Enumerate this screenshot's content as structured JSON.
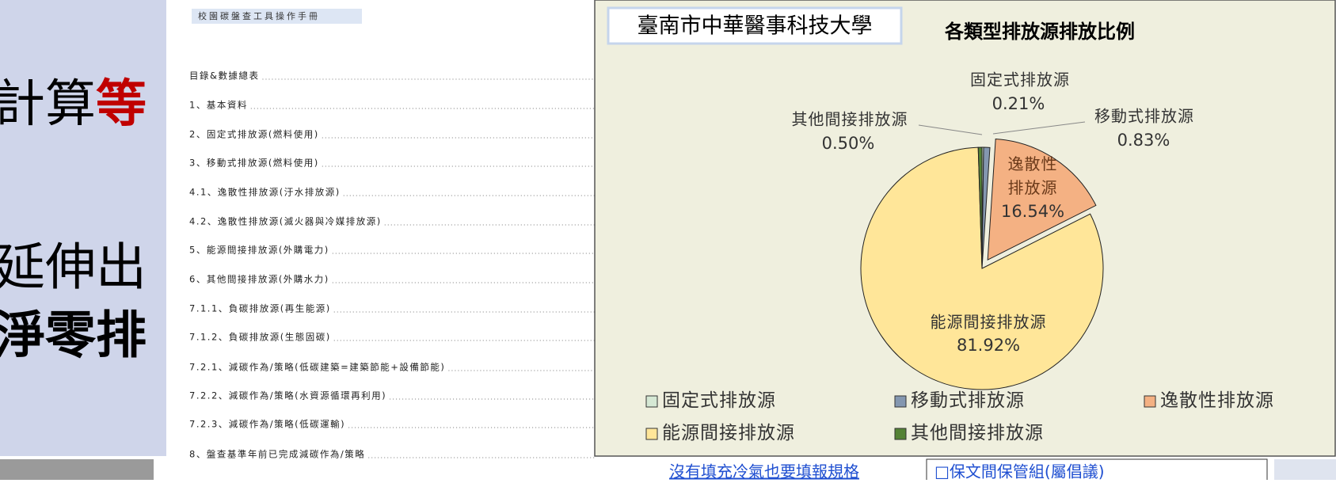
{
  "slide": {
    "lines": [
      "計算",
      "等",
      "延伸出",
      "淨零排"
    ]
  },
  "document": {
    "header": "校園碳盤查工具操作手冊",
    "toc": [
      "目錄&數據總表",
      "1、基本資料",
      "2、固定式排放源(燃料使用)",
      "3、移動式排放源(燃料使用)",
      "4.1、逸散性排放源(汙水排放源)",
      "4.2、逸散性排放源(滅火器與冷媒排放源)",
      "5、能源間接排放源(外購電力)",
      "6、其他間接排放源(外購水力)",
      "7.1.1、負碳排放源(再生能源)",
      "7.1.2、負碳排放源(生態固碳)",
      "7.2.1、減碳作為/策略(低碳建築=建築節能+設備節能)",
      "7.2.2、減碳作為/策略(水資源循環再利用)",
      "7.2.3、減碳作為/策略(低碳運輸)",
      "8、盤查基準年前已完成減碳作為/策略"
    ]
  },
  "bottom": {
    "left": "沒有填充冷氣也要填報規格",
    "right": "□保文間保管組(屬倡議)"
  },
  "chart_data": {
    "type": "pie",
    "subtitle": "臺南市中華醫事科技大學",
    "title": "各類型排放源排放比例",
    "categories": [
      "固定式排放源",
      "移動式排放源",
      "逸散性排放源",
      "能源間接排放源",
      "其他間接排放源"
    ],
    "values": [
      0.21,
      0.83,
      16.54,
      81.92,
      0.5
    ],
    "value_labels": [
      "0.21%",
      "0.83%",
      "16.54%",
      "81.92%",
      "0.50%"
    ],
    "colors": [
      "#d5e8d4",
      "#8497b0",
      "#f4b183",
      "#ffe699",
      "#548235"
    ],
    "legend": "bottom"
  }
}
